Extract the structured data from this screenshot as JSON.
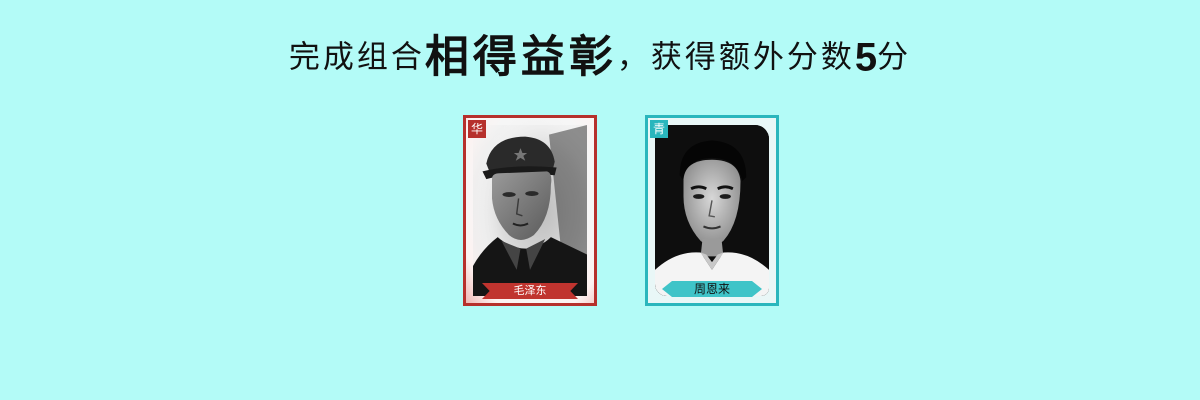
{
  "title": {
    "prefix": "完成组合",
    "combo_name": "相得益彰",
    "middle": "，获得额外分数",
    "bonus_points": "5",
    "suffix": "分"
  },
  "cards": [
    {
      "name": "毛泽东",
      "badge": "华",
      "frame_color": "#b6302c"
    },
    {
      "name": "周恩来",
      "badge": "青",
      "frame_color": "#2ab6bd"
    }
  ]
}
